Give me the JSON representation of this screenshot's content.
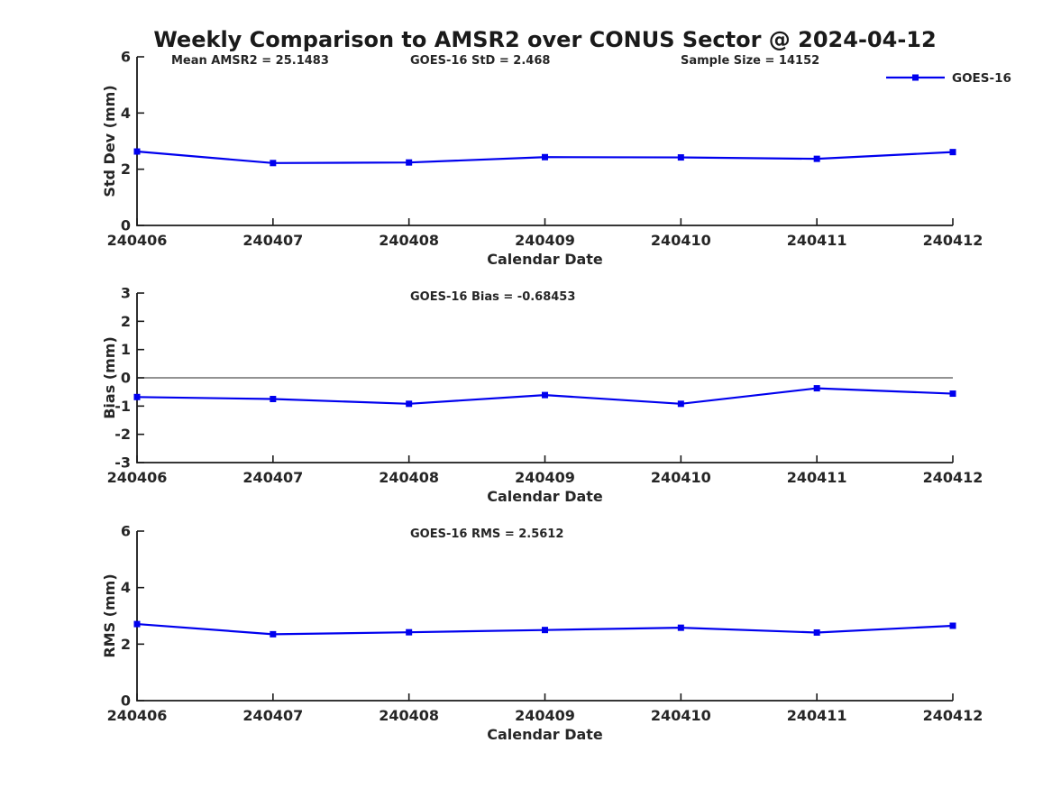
{
  "title": "Weekly Comparison to AMSR2 over CONUS Sector @ 2024-04-12",
  "colors": {
    "series": "#0000EE",
    "text": "#262626",
    "axis": "#1a1a1a",
    "zero_line": "#6e6e6e",
    "background": "#ffffff"
  },
  "chart_data": [
    {
      "type": "line",
      "name": "std-dev",
      "title": "",
      "xlabel": "Calendar Date",
      "ylabel": "Std Dev (mm)",
      "categories": [
        "240406",
        "240407",
        "240408",
        "240409",
        "240410",
        "240411",
        "240412"
      ],
      "ylim": [
        0,
        6
      ],
      "yticks": [
        0,
        2,
        4,
        6
      ],
      "grid": false,
      "zero_line": false,
      "series": [
        {
          "name": "GOES-16",
          "marker": "square",
          "values": [
            2.63,
            2.22,
            2.24,
            2.43,
            2.42,
            2.37,
            2.61
          ]
        }
      ],
      "annotations": [
        {
          "text": "Mean AMSR2 = 25.1483"
        },
        {
          "text": "GOES-16 StD = 2.468"
        },
        {
          "text": "Sample Size = 14152"
        }
      ],
      "legend": {
        "visible": true,
        "label": "GOES-16",
        "position": "top-right"
      }
    },
    {
      "type": "line",
      "name": "bias",
      "title": "",
      "xlabel": "Calendar Date",
      "ylabel": "Bias (mm)",
      "categories": [
        "240406",
        "240407",
        "240408",
        "240409",
        "240410",
        "240411",
        "240412"
      ],
      "ylim": [
        -3,
        3
      ],
      "yticks": [
        -3,
        -2,
        -1,
        0,
        1,
        2,
        3
      ],
      "grid": false,
      "zero_line": true,
      "series": [
        {
          "name": "GOES-16",
          "marker": "square",
          "values": [
            -0.68,
            -0.75,
            -0.92,
            -0.61,
            -0.92,
            -0.37,
            -0.56
          ]
        }
      ],
      "annotations": [
        {
          "text": "GOES-16 Bias  = -0.68453"
        }
      ],
      "legend": {
        "visible": false,
        "label": "GOES-16"
      }
    },
    {
      "type": "line",
      "name": "rms",
      "title": "",
      "xlabel": "Calendar Date",
      "ylabel": "RMS (mm)",
      "categories": [
        "240406",
        "240407",
        "240408",
        "240409",
        "240410",
        "240411",
        "240412"
      ],
      "ylim": [
        0,
        6
      ],
      "yticks": [
        0,
        2,
        4,
        6
      ],
      "grid": false,
      "zero_line": false,
      "series": [
        {
          "name": "GOES-16",
          "marker": "square",
          "values": [
            2.71,
            2.35,
            2.42,
            2.5,
            2.58,
            2.41,
            2.65
          ]
        }
      ],
      "annotations": [
        {
          "text": "GOES-16 RMS = 2.5612"
        }
      ],
      "legend": {
        "visible": false,
        "label": "GOES-16"
      }
    }
  ]
}
